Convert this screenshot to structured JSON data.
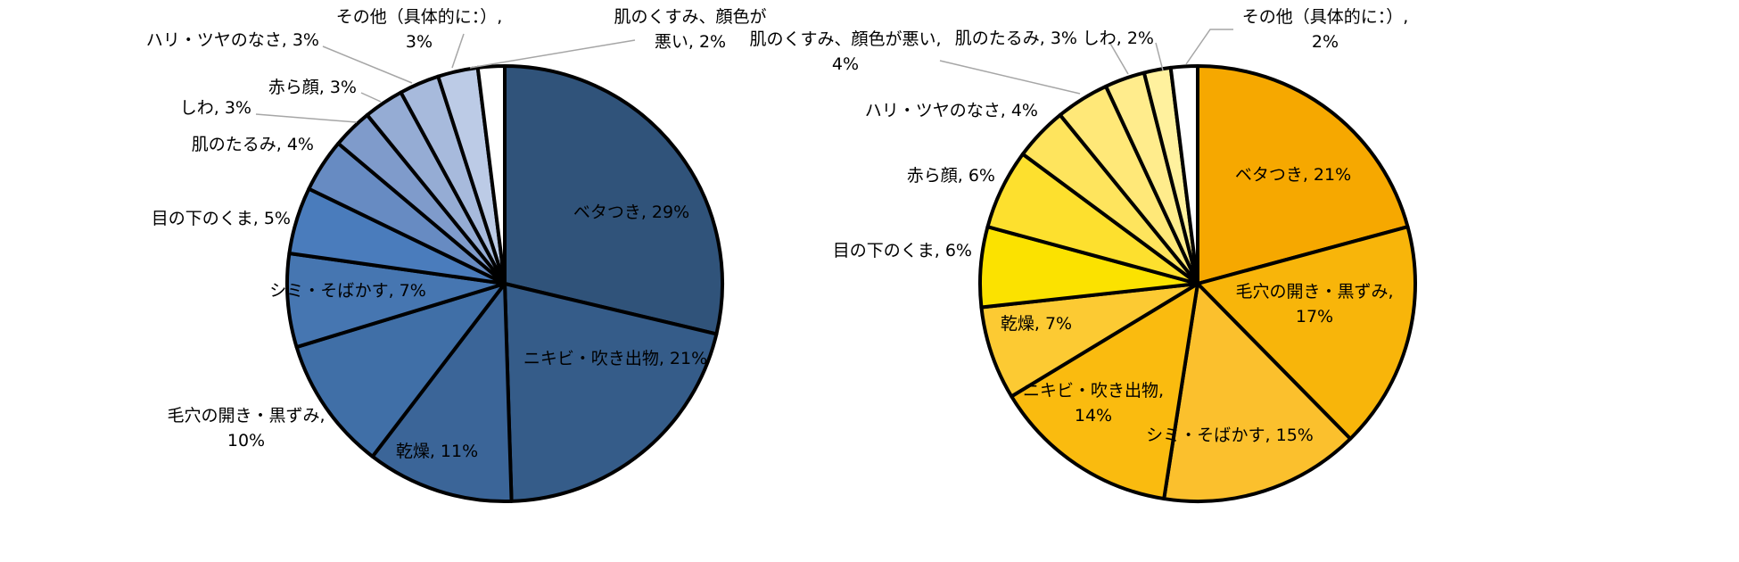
{
  "chart_data": [
    {
      "type": "pie",
      "title": "",
      "slices": [
        {
          "label": "ベタつき",
          "value": 29,
          "text": "ベタつき, 29%",
          "color": "#30537a",
          "lines": [
            "ベタつき, 29%"
          ]
        },
        {
          "label": "ニキビ・吹き出物",
          "value": 21,
          "text": "ニキビ・吹き出物, 21%",
          "color": "#355c89",
          "lines": [
            "ニキビ・吹き出物, 21%"
          ]
        },
        {
          "label": "乾燥",
          "value": 11,
          "text": "乾燥, 11%",
          "color": "#3b6598",
          "lines": [
            "乾燥, 11%"
          ]
        },
        {
          "label": "毛穴の開き・黒ずみ",
          "value": 10,
          "text": "毛穴の開き・黒ずみ, 10%",
          "color": "#406fa7",
          "lines": [
            "毛穴の開き・黒ずみ,",
            "10%"
          ]
        },
        {
          "label": "シミ・そばかす",
          "value": 7,
          "text": "シミ・そばかす, 7%",
          "color": "#4676b1",
          "lines": [
            "シミ・そばかす, 7%"
          ]
        },
        {
          "label": "目の下のくま",
          "value": 5,
          "text": "目の下のくま, 5%",
          "color": "#4a7cbc",
          "lines": [
            "目の下のくま, 5%"
          ]
        },
        {
          "label": "肌のたるみ",
          "value": 4,
          "text": "肌のたるみ, 4%",
          "color": "#678bc2",
          "lines": [
            "肌のたるみ, 4%"
          ]
        },
        {
          "label": "しわ",
          "value": 3,
          "text": "しわ, 3%",
          "color": "#7f9bcb",
          "lines": [
            "しわ, 3%"
          ]
        },
        {
          "label": "赤ら顔",
          "value": 3,
          "text": "赤ら顔, 3%",
          "color": "#95acd4",
          "lines": [
            "赤ら顔, 3%"
          ]
        },
        {
          "label": "ハリ・ツヤのなさ",
          "value": 3,
          "text": "ハリ・ツヤのなさ, 3%",
          "color": "#a7badc",
          "lines": [
            "ハリ・ツヤのなさ, 3%"
          ]
        },
        {
          "label": "その他（具体的に：）",
          "value": 3,
          "text": "その他（具体的に：）, 3%",
          "color": "#bccbe6",
          "lines": [
            "その他（具体的に：）,",
            "3%"
          ]
        },
        {
          "label": "肌のくすみ、顔色が悪い",
          "value": 2,
          "text": "肌のくすみ、顔色が悪い, 2%",
          "color": "#ffffff",
          "lines": [
            "肌のくすみ、顔色が",
            "悪い, 2%"
          ]
        }
      ]
    },
    {
      "type": "pie",
      "title": "",
      "slices": [
        {
          "label": "ベタつき",
          "value": 21,
          "text": "ベタつき, 21%",
          "color": "#f6a800",
          "lines": [
            "ベタつき, 21%"
          ]
        },
        {
          "label": "毛穴の開き・黒ずみ",
          "value": 17,
          "text": "毛穴の開き・黒ずみ, 17%",
          "color": "#f8b50a",
          "lines": [
            "毛穴の開き・黒ずみ,",
            "17%"
          ]
        },
        {
          "label": "シミ・そばかす",
          "value": 15,
          "text": "シミ・そばかす, 15%",
          "color": "#fbc02d",
          "lines": [
            "シミ・そばかす, 15%"
          ]
        },
        {
          "label": "ニキビ・吹き出物",
          "value": 14,
          "text": "ニキビ・吹き出物, 14%",
          "color": "#fabb0f",
          "lines": [
            "ニキビ・吹き出物,",
            "14%"
          ]
        },
        {
          "label": "乾燥",
          "value": 7,
          "text": "乾燥, 7%",
          "color": "#fcca33",
          "lines": [
            "乾燥, 7%"
          ]
        },
        {
          "label": "目の下のくま",
          "value": 6,
          "text": "目の下のくま, 6%",
          "color": "#fbe200",
          "lines": [
            "目の下のくま, 6%"
          ]
        },
        {
          "label": "赤ら顔",
          "value": 6,
          "text": "赤ら顔, 6%",
          "color": "#fde02e",
          "lines": [
            "赤ら顔, 6%"
          ]
        },
        {
          "label": "ハリ・ツヤのなさ",
          "value": 4,
          "text": "ハリ・ツヤのなさ, 4%",
          "color": "#fee45d",
          "lines": [
            "ハリ・ツヤのなさ, 4%"
          ]
        },
        {
          "label": "肌のくすみ、顔色が悪い",
          "value": 4,
          "text": "肌のくすみ、顔色が悪い, 4%",
          "color": "#ffe878",
          "lines": [
            "肌のくすみ、顔色が悪い,",
            "4%"
          ]
        },
        {
          "label": "肌のたるみ",
          "value": 3,
          "text": "肌のたるみ, 3%",
          "color": "#ffec8c",
          "lines": [
            "肌のたるみ, 3%"
          ]
        },
        {
          "label": "しわ",
          "value": 2,
          "text": "しわ, 2%",
          "color": "#fff19e",
          "lines": [
            "しわ, 2%"
          ]
        },
        {
          "label": "その他（具体的に：）",
          "value": 2,
          "text": "その他（具体的に：）, 2%",
          "color": "#ffffff",
          "lines": [
            "その他（具体的に：）,",
            "2%"
          ]
        }
      ]
    }
  ]
}
